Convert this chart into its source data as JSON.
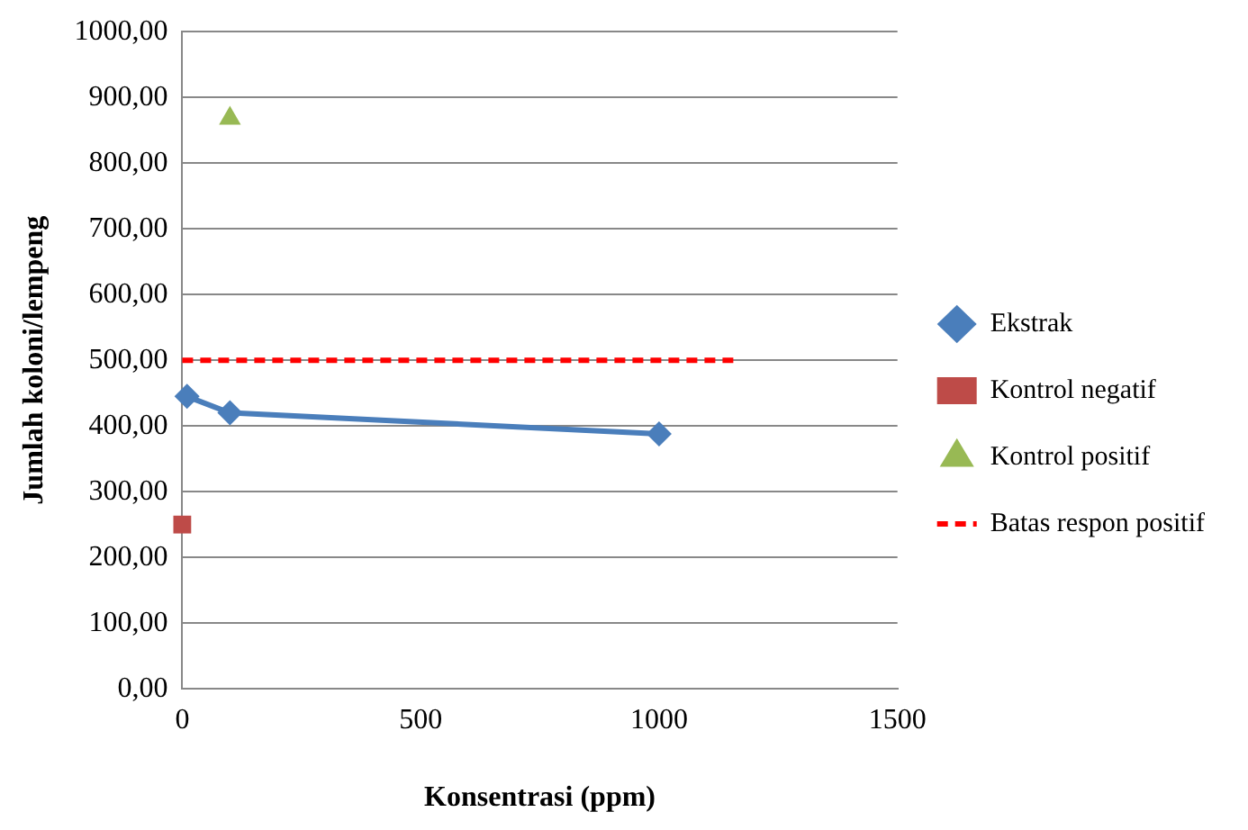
{
  "chart_data": {
    "type": "line",
    "xlabel": "Konsentrasi (ppm)",
    "ylabel": "Jumlah koloni/lempeng",
    "xlim": [
      0,
      1500
    ],
    "xticks": [
      0,
      500,
      1000,
      1500
    ],
    "ylim": [
      0,
      1000
    ],
    "yticks": [
      {
        "value": 0,
        "label": "0,00"
      },
      {
        "value": 100,
        "label": "100,00"
      },
      {
        "value": 200,
        "label": "200,00"
      },
      {
        "value": 300,
        "label": "300,00"
      },
      {
        "value": 400,
        "label": "400,00"
      },
      {
        "value": 500,
        "label": "500,00"
      },
      {
        "value": 600,
        "label": "600,00"
      },
      {
        "value": 700,
        "label": "700,00"
      },
      {
        "value": 800,
        "label": "800,00"
      },
      {
        "value": 900,
        "label": "900,00"
      },
      {
        "value": 1000,
        "label": "1000,00"
      }
    ],
    "grid": "y",
    "legend": "right",
    "series": [
      {
        "name": "Ekstrak",
        "color": "#4a7ebb",
        "x": [
          10,
          100,
          1000
        ],
        "values": [
          445,
          420,
          388
        ],
        "marker": "diamond",
        "line_style": "solid"
      },
      {
        "name": "Kontrol negatif",
        "color": "#be4b48",
        "x": [
          0
        ],
        "values": [
          250
        ],
        "marker": "square",
        "line_style": "solid"
      },
      {
        "name": "Kontrol positif",
        "color": "#98b954",
        "x": [
          100
        ],
        "values": [
          868
        ],
        "marker": "triangle",
        "line_style": "solid"
      },
      {
        "name": "Batas respon positif",
        "color": "#ff0000",
        "x": [
          0,
          1170
        ],
        "values": [
          500,
          500
        ],
        "marker": "none",
        "line_style": "dashed"
      }
    ]
  }
}
